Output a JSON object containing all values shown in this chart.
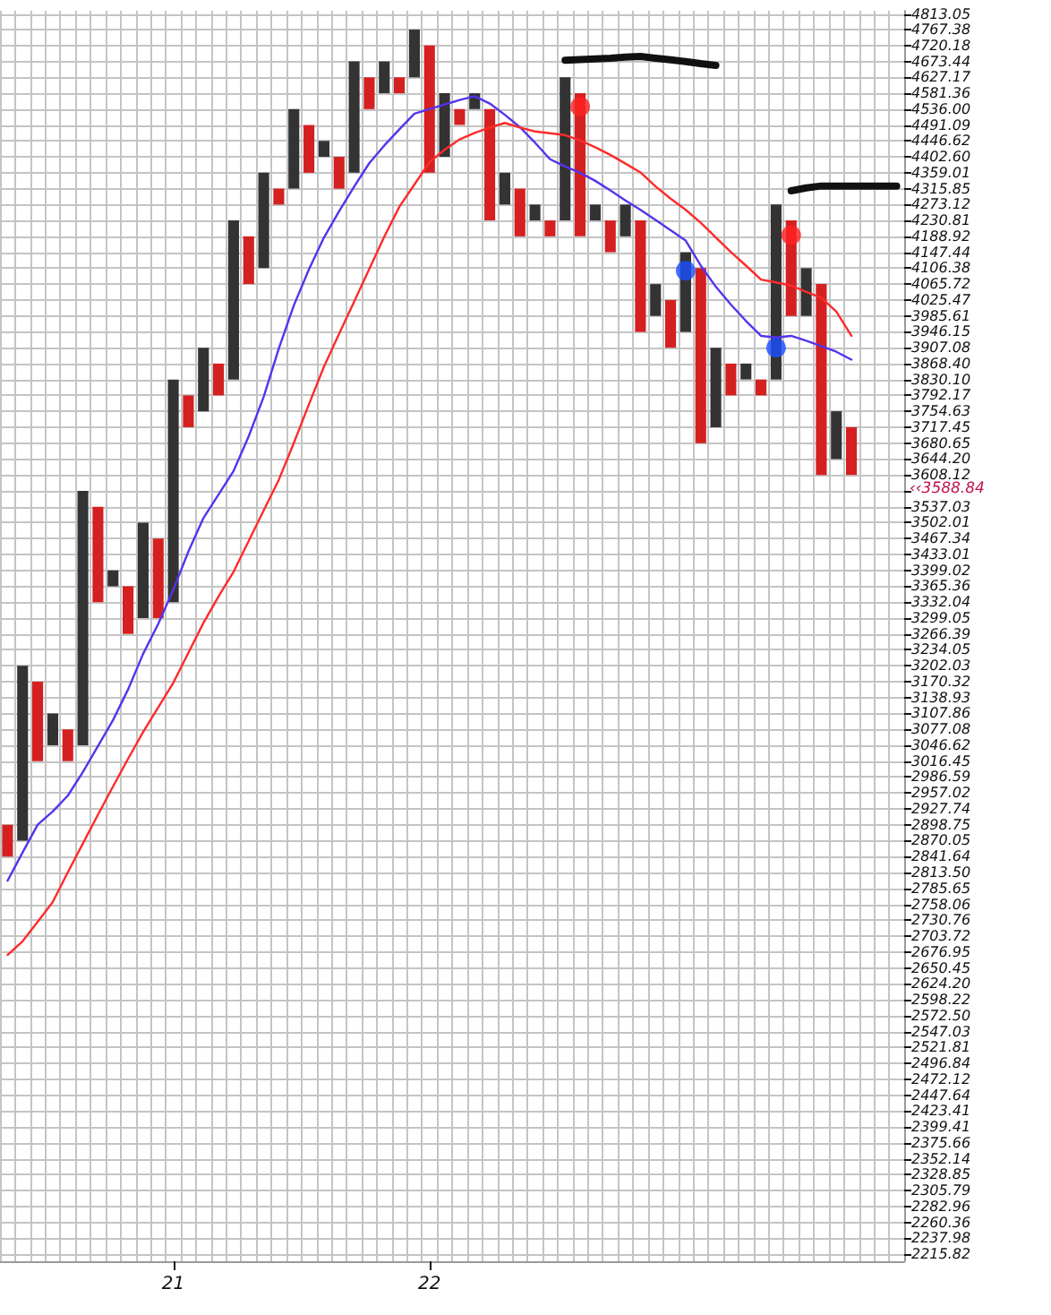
{
  "chart_data": {
    "type": "bar",
    "log": "y",
    "grid": true,
    "categories": [
      null,
      null,
      null,
      null,
      null,
      null,
      null,
      null,
      null,
      null,
      null,
      "21",
      null,
      null,
      null,
      null,
      null,
      null,
      null,
      null,
      null,
      null,
      null,
      null,
      null,
      null,
      null,
      null,
      "22",
      null,
      null,
      null,
      null,
      null,
      null,
      null,
      null,
      null,
      null,
      null,
      null,
      null,
      null,
      null,
      null,
      null,
      null,
      null,
      null,
      null,
      null,
      null,
      null,
      null,
      null,
      null,
      null,
      null,
      null,
      null
    ],
    "ylim": [
      2206,
      4824
    ],
    "yticks": [
      2215.82,
      2237.98,
      2260.36,
      2282.96,
      2305.79,
      2328.85,
      2352.14,
      2375.66,
      2399.41,
      2423.41,
      2447.64,
      2472.12,
      2496.84,
      2521.81,
      2547.03,
      {
        "value": 2572.5,
        "label": "2572.50"
      },
      2598.22,
      {
        "value": 2624.2,
        "label": "2624.20"
      },
      2650.45,
      2676.95,
      2703.72,
      2730.76,
      2758.06,
      2785.65,
      {
        "value": 2813.5,
        "label": "2813.50"
      },
      2841.64,
      2870.05,
      2898.75,
      2927.74,
      2957.02,
      2986.59,
      3016.45,
      3046.62,
      3077.08,
      3107.86,
      3138.93,
      3170.32,
      3202.03,
      3234.05,
      3266.39,
      3299.05,
      3332.04,
      3365.36,
      3399.02,
      3433.01,
      3467.34,
      3502.01,
      3537.03,
      {
        "value": 3572.4,
        "label": null
      },
      3608.12,
      {
        "value": 3644.2,
        "label": "3644.20"
      },
      3680.65,
      3717.45,
      3754.63,
      3792.17,
      {
        "value": 3830.1,
        "label": "3830.10"
      },
      {
        "value": 3868.4,
        "label": "3868.40"
      },
      3907.08,
      3946.15,
      3985.61,
      4025.47,
      4065.72,
      4106.38,
      4147.44,
      4188.92,
      4230.81,
      4273.12,
      4315.85,
      4359.01,
      {
        "value": 4402.6,
        "label": "4402.60"
      },
      4446.62,
      4491.09,
      {
        "value": 4536,
        "label": "4536.00"
      },
      4581.36,
      4627.17,
      4673.44,
      4720.18,
      4767.38,
      4813.05
    ],
    "annotations": [
      "‹‹3588.84"
    ],
    "series": [
      {
        "color": "#333333",
        "base": [
          null,
          2870.05,
          null,
          3046.62,
          null,
          3046.62,
          null,
          3365.36,
          null,
          3299.05,
          null,
          3332.04,
          null,
          3754.63,
          null,
          3830.1,
          null,
          4106.38,
          null,
          4315.85,
          null,
          4402.6,
          null,
          4359.01,
          null,
          4581.36,
          null,
          4627.17,
          null,
          4402.6,
          null,
          4536,
          null,
          4273.12,
          null,
          4230.81,
          null,
          4230.81,
          null,
          4230.81,
          null,
          4188.92,
          null,
          3985.61,
          null,
          3946.15,
          null,
          3717.45,
          null,
          3830.1,
          null,
          3830.1,
          null,
          3985.61,
          null,
          3644.2,
          null,
          null,
          null,
          null
        ],
        "values": [
          null,
          331.98,
          null,
          61.24,
          null,
          525.78,
          null,
          33.66,
          null,
          202.96,
          null,
          498.06,
          null,
          152.45,
          null,
          400.71,
          null,
          252.63,
          null,
          220.15,
          null,
          44.02,
          null,
          314.43,
          null,
          92.08,
          null,
          140.21,
          null,
          178.76,
          null,
          45.36,
          null,
          85.89,
          null,
          42.31,
          null,
          396.36,
          null,
          42.31,
          null,
          84.2,
          null,
          80.11,
          null,
          201.29,
          null,
          189.63,
          null,
          38.3,
          null,
          443.02,
          null,
          120.77,
          null,
          110.43,
          null,
          null,
          null,
          null
        ]
      },
      {
        "color": "#d42020",
        "base": [
          2841.64,
          null,
          3016.45,
          null,
          3016.45,
          null,
          3332.04,
          null,
          3266.39,
          null,
          3299.05,
          null,
          3717.45,
          null,
          3792.17,
          null,
          4065.72,
          null,
          4273.12,
          null,
          4359.01,
          null,
          4315.85,
          null,
          4536,
          null,
          4581.36,
          null,
          4359.01,
          null,
          4491.09,
          null,
          4230.81,
          null,
          4188.92,
          null,
          4188.92,
          null,
          4188.92,
          null,
          4147.44,
          null,
          3946.15,
          null,
          3907.08,
          null,
          3680.65,
          null,
          3792.17,
          null,
          3792.17,
          null,
          3985.61,
          null,
          3608.12,
          null,
          3608.12,
          null,
          null,
          null
        ],
        "values": [
          57.11,
          null,
          153.87,
          null,
          60.63,
          null,
          204.99,
          null,
          98.97,
          null,
          168.29,
          null,
          74.72,
          null,
          76.23,
          null,
          123.2,
          null,
          42.73,
          null,
          132.08,
          null,
          86.75,
          null,
          91.17,
          null,
          45.81,
          null,
          361.17,
          null,
          44.91,
          null,
          305.19,
          null,
          126.93,
          null,
          41.89,
          null,
          392.44,
          null,
          83.37,
          null,
          284.66,
          null,
          118.39,
          null,
          425.73,
          null,
          76.23,
          null,
          37.93,
          null,
          245.2,
          null,
          457.6,
          null,
          109.33,
          null,
          null,
          null
        ]
      },
      {
        "type": "line",
        "marker": "none",
        "color": "#5533ee",
        "values": [
          2799,
          2849,
          2899,
          2923,
          2952,
          2996,
          3045,
          3095,
          3155,
          3226,
          3287,
          3358,
          3439,
          3512,
          3564,
          3617,
          3696,
          3789,
          3905,
          4012,
          4103,
          4186,
          4255,
          4321,
          4385,
          4434,
          4479,
          4523,
          4536,
          4549,
          4562,
          4573,
          4552,
          4520,
          4485,
          4442,
          4396,
          4376,
          4359,
          4337,
          4311,
          4284,
          4259,
          4232,
          4205,
          4178,
          4113,
          4059,
          4014,
          3973,
          3936,
          3932,
          3936,
          3924,
          3911,
          3897,
          3878,
          null,
          null,
          null
        ]
      },
      {
        "type": "line",
        "marker": "none",
        "color": "#ff2a2a",
        "values": [
          2672,
          2695,
          2728,
          2762,
          2814,
          2865,
          2917,
          2969,
          3021,
          3072,
          3120,
          3168,
          3228,
          3289,
          3344,
          3396,
          3462,
          3529,
          3597,
          3681,
          3771,
          3861,
          3941,
          4021,
          4104,
          4188,
          4267,
          4327,
          4388,
          4422,
          4451,
          4469,
          4484,
          4497,
          4484,
          4473,
          4468,
          4463,
          4448,
          4429,
          4408,
          4384,
          4360,
          4322,
          4289,
          4259,
          4225,
          4186,
          4148,
          4113,
          4077,
          4070,
          4062,
          4046,
          4031,
          3996,
          3936,
          null,
          null,
          null
        ]
      },
      {
        "type": "line",
        "marker": "none",
        "color": "#111111",
        "values": [
          null,
          null,
          null,
          null,
          null,
          null,
          null,
          null,
          null,
          null,
          null,
          null,
          null,
          null,
          null,
          null,
          null,
          null,
          null,
          null,
          null,
          null,
          null,
          null,
          null,
          null,
          null,
          null,
          null,
          null,
          null,
          null,
          null,
          null,
          null,
          null,
          null,
          4677,
          4679,
          4681,
          4683,
          4686,
          4688,
          4683,
          4678,
          4673,
          4667,
          4662,
          null,
          null,
          null,
          null,
          null,
          null,
          null,
          null,
          null,
          null,
          null,
          null
        ]
      },
      {
        "type": "line",
        "marker": "none",
        "color": "#111111",
        "values": [
          null,
          null,
          null,
          null,
          null,
          null,
          null,
          null,
          null,
          null,
          null,
          null,
          null,
          null,
          null,
          null,
          null,
          null,
          null,
          null,
          null,
          null,
          null,
          null,
          null,
          null,
          null,
          null,
          null,
          null,
          null,
          null,
          null,
          null,
          null,
          null,
          null,
          null,
          null,
          null,
          null,
          null,
          null,
          null,
          null,
          null,
          null,
          null,
          null,
          null,
          null,
          null,
          4310,
          4318,
          4323,
          4323,
          4323,
          4323,
          4323,
          4323
        ]
      },
      {
        "type": "scatter",
        "marker": "circle",
        "color": "#ff2222",
        "values": [
          null,
          null,
          null,
          null,
          null,
          null,
          null,
          null,
          null,
          null,
          null,
          null,
          null,
          null,
          null,
          null,
          null,
          null,
          null,
          null,
          null,
          null,
          null,
          null,
          null,
          null,
          null,
          null,
          null,
          null,
          null,
          null,
          null,
          null,
          null,
          null,
          null,
          null,
          4543,
          null,
          null,
          null,
          null,
          null,
          null,
          null,
          null,
          null,
          null,
          null,
          null,
          null,
          4192,
          null,
          null,
          null,
          null,
          null,
          null,
          null
        ]
      },
      {
        "type": "scatter",
        "marker": "circle",
        "color": "#1a4fff",
        "values": [
          null,
          null,
          null,
          null,
          null,
          null,
          null,
          null,
          null,
          null,
          null,
          null,
          null,
          null,
          null,
          null,
          null,
          null,
          null,
          null,
          null,
          null,
          null,
          null,
          null,
          null,
          null,
          null,
          null,
          null,
          null,
          null,
          null,
          null,
          null,
          null,
          null,
          null,
          null,
          null,
          null,
          null,
          null,
          null,
          null,
          4100,
          null,
          null,
          null,
          null,
          null,
          3907,
          null,
          null,
          null,
          null,
          null,
          null,
          null,
          null
        ]
      }
    ]
  }
}
